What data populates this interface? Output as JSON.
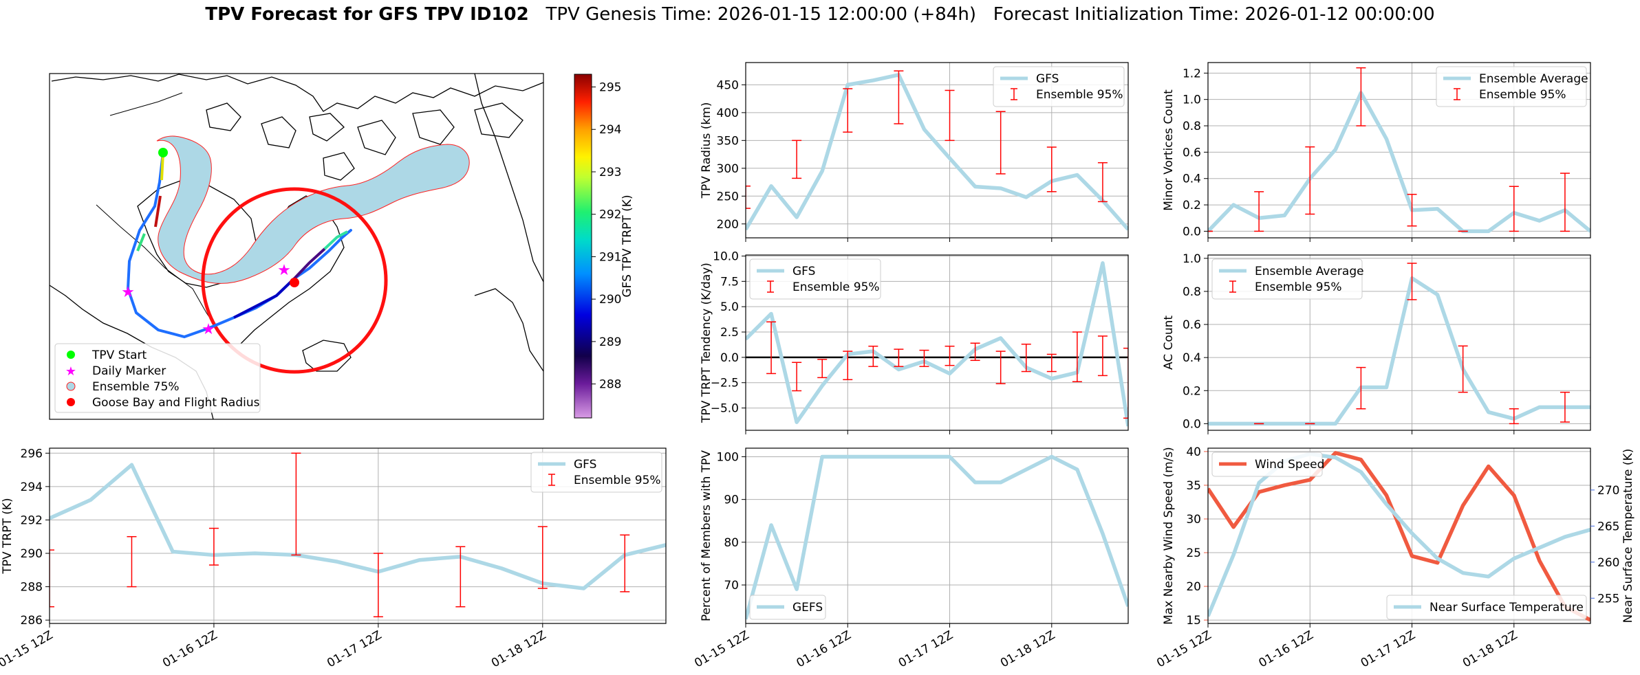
{
  "header": {
    "title_bold": "TPV Forecast for GFS TPV ID102",
    "genesis": "TPV Genesis Time: 2026-01-15 12:00:00 (+84h)",
    "init": "Forecast Initialization Time: 2026-01-12 00:00:00"
  },
  "colors": {
    "gfs": "#add8e6",
    "error": "#ff0000",
    "wind": "#f05a40",
    "temp": "#add8e6",
    "temp_axis": "#4169e1",
    "wind_axis": "#f05a40",
    "envelope_fill": "#add8e6",
    "envelope_edge": "#ff2020",
    "start_marker": "#00ff00",
    "daily_marker": "#ff00ff",
    "goose_bay": "#ff0000"
  },
  "map": {
    "colorbar_label": "GFS TPV TRPT (K)",
    "colorbar_ticks": [
      288,
      289,
      290,
      291,
      292,
      293,
      294,
      295
    ],
    "colorbar_range": [
      287.2,
      295.3
    ],
    "legend": [
      "TPV Start",
      "Daily Marker",
      "Ensemble 75%",
      "Goose Bay and Flight Radius"
    ]
  },
  "x_tick_labels": [
    "01-15 12Z",
    "01-16 12Z",
    "01-17 12Z",
    "01-18 12Z"
  ],
  "chart_data": [
    {
      "id": "radius",
      "type": "line",
      "ylabel": "TPV Radius (km)",
      "ylim": [
        175,
        490
      ],
      "yticks": [
        200,
        250,
        300,
        350,
        400,
        450
      ],
      "legend_loc": "top-right",
      "series": [
        {
          "name": "GFS",
          "x": [
            0,
            0.25,
            0.5,
            0.75,
            1,
            1.25,
            1.5,
            1.75,
            2,
            2.25,
            2.5,
            2.75,
            3,
            3.25,
            3.5,
            3.75
          ],
          "values": [
            190,
            268,
            212,
            295,
            450,
            458,
            468,
            370,
            318,
            267,
            264,
            248,
            277,
            288,
            242,
            190
          ]
        }
      ],
      "errorbars": {
        "name": "Ensemble 95%",
        "x": [
          0,
          0.5,
          1,
          1.5,
          2,
          2.5,
          3,
          3.5
        ],
        "low": [
          228,
          282,
          365,
          380,
          350,
          290,
          258,
          240
        ],
        "high": [
          268,
          350,
          443,
          475,
          440,
          402,
          338,
          310
        ]
      }
    },
    {
      "id": "minor",
      "type": "line",
      "ylabel": "Minor Vortices Count",
      "ylim": [
        -0.05,
        1.28
      ],
      "yticks": [
        0.0,
        0.2,
        0.4,
        0.6,
        0.8,
        1.0,
        1.2
      ],
      "legend_loc": "top-right",
      "series": [
        {
          "name": "Ensemble Average",
          "x": [
            0,
            0.25,
            0.5,
            0.75,
            1,
            1.25,
            1.5,
            1.75,
            2,
            2.25,
            2.5,
            2.75,
            3,
            3.25,
            3.5,
            3.75
          ],
          "values": [
            0.0,
            0.2,
            0.1,
            0.12,
            0.4,
            0.62,
            1.05,
            0.7,
            0.16,
            0.17,
            0.0,
            0.0,
            0.14,
            0.08,
            0.16,
            0.0
          ]
        }
      ],
      "errorbars": {
        "name": "Ensemble 95%",
        "x": [
          0,
          0.5,
          1,
          1.5,
          2,
          2.5,
          3,
          3.5
        ],
        "low": [
          0.0,
          0.0,
          0.13,
          0.8,
          0.04,
          0.0,
          0.0,
          0.0
        ],
        "high": [
          0.0,
          0.3,
          0.64,
          1.24,
          0.28,
          0.0,
          0.34,
          0.44
        ]
      }
    },
    {
      "id": "tendency",
      "type": "line",
      "ylabel": "TPV TRPT Tendency (K/day)",
      "ylim": [
        -7.2,
        10.1
      ],
      "yticks": [
        -5.0,
        -2.5,
        0.0,
        2.5,
        5.0,
        7.5,
        10.0
      ],
      "legend_loc": "top-left",
      "zero_line": true,
      "series": [
        {
          "name": "GFS",
          "x": [
            0,
            0.25,
            0.5,
            0.75,
            1,
            1.25,
            1.5,
            1.75,
            2,
            2.25,
            2.5,
            2.75,
            3,
            3.25,
            3.5,
            3.75
          ],
          "values": [
            1.8,
            4.3,
            -6.4,
            -2.8,
            0.3,
            0.6,
            -1.2,
            -0.4,
            -1.6,
            0.8,
            1.9,
            -1.0,
            -2.1,
            -1.5,
            9.3,
            -6.8
          ]
        }
      ],
      "errorbars": {
        "name": "Ensemble 95%",
        "x": [
          0.25,
          0.5,
          0.75,
          1,
          1.25,
          1.5,
          1.75,
          2,
          2.25,
          2.5,
          2.75,
          3,
          3.25,
          3.5,
          3.75
        ],
        "low": [
          -1.6,
          -3.3,
          -2.0,
          -2.2,
          -0.9,
          -0.9,
          -0.9,
          -0.8,
          -0.3,
          -2.6,
          -1.4,
          -1.4,
          -2.4,
          -1.8,
          -6.0
        ],
        "high": [
          3.5,
          -0.5,
          -0.2,
          0.6,
          1.1,
          0.8,
          0.7,
          1.1,
          1.4,
          0.6,
          1.3,
          0.3,
          2.5,
          2.1,
          0.9
        ]
      }
    },
    {
      "id": "ac",
      "type": "line",
      "ylabel": "AC Count",
      "ylim": [
        -0.04,
        1.02
      ],
      "yticks": [
        0.0,
        0.2,
        0.4,
        0.6,
        0.8,
        1.0
      ],
      "legend_loc": "top-left",
      "series": [
        {
          "name": "Ensemble Average",
          "x": [
            0,
            0.25,
            0.5,
            0.75,
            1,
            1.25,
            1.5,
            1.75,
            2,
            2.25,
            2.5,
            2.75,
            3,
            3.25,
            3.5,
            3.75
          ],
          "values": [
            0,
            0,
            0,
            0,
            0,
            0,
            0.22,
            0.22,
            0.88,
            0.78,
            0.33,
            0.07,
            0.03,
            0.1,
            0.1,
            0.1
          ]
        }
      ],
      "errorbars": {
        "name": "Ensemble 95%",
        "x": [
          0.5,
          1,
          1.5,
          2,
          2.5,
          3,
          3.5
        ],
        "low": [
          0,
          0,
          0.09,
          0.75,
          0.19,
          0,
          0.01
        ],
        "high": [
          0,
          0,
          0.34,
          0.97,
          0.47,
          0.09,
          0.19
        ]
      }
    },
    {
      "id": "trpt",
      "type": "line",
      "ylabel": "TPV TRPT (K)",
      "ylim": [
        285.8,
        296.3
      ],
      "yticks": [
        286,
        288,
        290,
        292,
        294,
        296
      ],
      "legend_loc": "top-right",
      "series": [
        {
          "name": "GFS",
          "x": [
            0,
            0.25,
            0.5,
            0.75,
            1,
            1.25,
            1.5,
            1.75,
            2,
            2.25,
            2.5,
            2.75,
            3,
            3.25,
            3.5,
            3.75
          ],
          "values": [
            292.1,
            293.2,
            295.3,
            290.1,
            289.9,
            290.0,
            289.9,
            289.5,
            288.9,
            289.6,
            289.8,
            289.1,
            288.2,
            287.9,
            289.9,
            290.5
          ]
        }
      ],
      "errorbars": {
        "name": "Ensemble 95%",
        "x": [
          0,
          0.5,
          1,
          1.5,
          2,
          2.5,
          3,
          3.5
        ],
        "low": [
          286.8,
          288.0,
          289.3,
          289.9,
          286.2,
          286.8,
          287.9,
          287.7
        ],
        "high": [
          290.2,
          291.0,
          291.5,
          296.0,
          290.0,
          290.4,
          291.6,
          291.1
        ]
      }
    },
    {
      "id": "percent",
      "type": "line",
      "ylabel": "Percent of Members with TPV",
      "ylim": [
        61,
        102
      ],
      "yticks": [
        70,
        80,
        90,
        100
      ],
      "legend_loc": "bottom-left",
      "series": [
        {
          "name": "GEFS",
          "x": [
            0,
            0.25,
            0.5,
            0.75,
            1,
            1.25,
            1.5,
            1.75,
            2,
            2.25,
            2.5,
            2.75,
            3,
            3.25,
            3.5,
            3.75
          ],
          "values": [
            62,
            84,
            69,
            100,
            100,
            100,
            100,
            100,
            100,
            94,
            94,
            97,
            100,
            97,
            82,
            65
          ]
        }
      ]
    },
    {
      "id": "wind",
      "type": "line",
      "ylabel": "Max Nearby Wind Speed (m/s)",
      "ylabel_right": "Near Surface Temperature (K)",
      "ylim": [
        14.5,
        40.5
      ],
      "yticks": [
        15,
        20,
        25,
        30,
        35,
        40
      ],
      "ylim_right": [
        251.5,
        275.8
      ],
      "yticks_right": [
        255,
        260,
        265,
        270
      ],
      "legend_loc": "top-left / bottom-right",
      "series": [
        {
          "name": "Wind Speed",
          "axis": "left",
          "x": [
            0,
            0.25,
            0.5,
            0.75,
            1,
            1.25,
            1.5,
            1.75,
            2,
            2.25,
            2.5,
            2.75,
            3,
            3.25,
            3.5,
            3.75
          ],
          "values": [
            34.5,
            28.8,
            34.0,
            35.0,
            35.8,
            39.8,
            38.8,
            33.5,
            24.5,
            23.5,
            32.0,
            37.8,
            33.5,
            23.8,
            17.0,
            15.0
          ]
        },
        {
          "name": "Near Surface Temperature",
          "axis": "right",
          "x": [
            0,
            0.25,
            0.5,
            0.75,
            1,
            1.25,
            1.5,
            1.75,
            2,
            2.25,
            2.5,
            2.75,
            3,
            3.25,
            3.5,
            3.75
          ],
          "values": [
            252.5,
            261.0,
            271.0,
            274.0,
            275.0,
            274.5,
            272.5,
            268.0,
            264.0,
            260.5,
            258.5,
            258.0,
            260.5,
            262.0,
            263.5,
            264.5
          ]
        }
      ]
    }
  ]
}
